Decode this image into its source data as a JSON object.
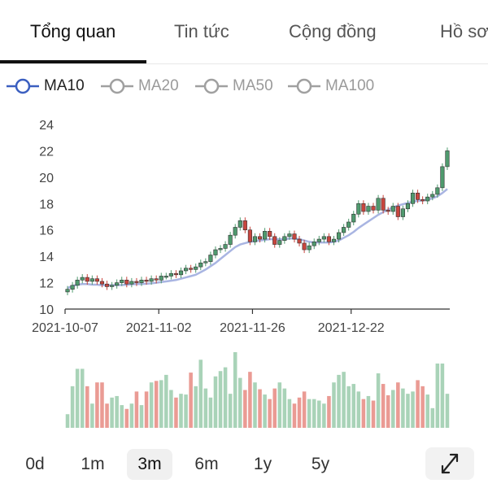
{
  "tabs": [
    {
      "label": "Tổng quan",
      "active": true
    },
    {
      "label": "Tin tức",
      "active": false
    },
    {
      "label": "Cộng đồng",
      "active": false
    },
    {
      "label": "Hồ sơ",
      "active": false
    }
  ],
  "legend": [
    {
      "label": "MA10",
      "active": true,
      "color": "#3b5fc0"
    },
    {
      "label": "MA20",
      "active": false,
      "color": "#a0a0a0"
    },
    {
      "label": "MA50",
      "active": false,
      "color": "#a0a0a0"
    },
    {
      "label": "MA100",
      "active": false,
      "color": "#a0a0a0"
    }
  ],
  "ranges": [
    {
      "label": "0d",
      "active": false
    },
    {
      "label": "1m",
      "active": false
    },
    {
      "label": "3m",
      "active": true
    },
    {
      "label": "6m",
      "active": false
    },
    {
      "label": "1y",
      "active": false
    },
    {
      "label": "5y",
      "active": false
    }
  ],
  "icons": {
    "expand": "expand-icon"
  },
  "colors": {
    "up": "#4f9a6e",
    "down": "#c8453e",
    "up_volume": "#a9d3b8",
    "down_volume": "#ea9b94",
    "ma10": "#a9b5e2"
  },
  "chart_data": {
    "type": "candlestick",
    "ylim": [
      10,
      24
    ],
    "yticks": [
      10,
      12,
      14,
      16,
      18,
      20,
      22,
      24
    ],
    "xticks": [
      "2021-10-07",
      "2021-11-02",
      "2021-11-26",
      "2021-12-22"
    ],
    "close": [
      11.5,
      11.8,
      12.2,
      12.4,
      12.1,
      12.3,
      12.1,
      11.9,
      11.7,
      11.8,
      12.0,
      12.2,
      11.9,
      12.1,
      12.0,
      12.2,
      12.1,
      12.3,
      12.2,
      12.5,
      12.5,
      12.7,
      12.6,
      12.9,
      13.1,
      13.0,
      13.2,
      13.5,
      13.6,
      14.1,
      14.5,
      14.6,
      14.9,
      15.6,
      16.2,
      16.7,
      16.0,
      15.1,
      15.5,
      15.3,
      15.9,
      15.5,
      14.9,
      15.2,
      15.5,
      15.7,
      15.3,
      15.0,
      14.5,
      14.8,
      15.1,
      15.3,
      15.5,
      15.1,
      15.3,
      15.8,
      16.2,
      16.6,
      17.2,
      18.0,
      17.4,
      17.8,
      17.5,
      18.4,
      17.5,
      17.4,
      17.8,
      17.0,
      17.6,
      18.0,
      18.8,
      18.3,
      18.2,
      18.5,
      18.7,
      19.2,
      20.8,
      22.0
    ],
    "volume": [
      18,
      55,
      78,
      78,
      55,
      32,
      60,
      60,
      32,
      40,
      42,
      30,
      25,
      32,
      48,
      30,
      48,
      60,
      62,
      63,
      70,
      50,
      40,
      45,
      44,
      73,
      55,
      90,
      52,
      40,
      68,
      75,
      80,
      45,
      100,
      66,
      50,
      74,
      60,
      51,
      44,
      38,
      52,
      60,
      52,
      38,
      32,
      40,
      48,
      38,
      38,
      36,
      32,
      42,
      60,
      70,
      74,
      55,
      58,
      48,
      38,
      42,
      36,
      72,
      58,
      43,
      50,
      60,
      52,
      45,
      48,
      63,
      55,
      44,
      26,
      85,
      85,
      45
    ],
    "ma10": [
      11.6,
      11.75,
      11.85,
      11.9,
      11.9,
      11.85,
      11.85,
      11.8,
      11.8,
      11.8,
      11.82,
      11.82,
      11.85,
      11.88,
      11.9,
      11.9,
      11.92,
      11.95,
      12.0,
      12.05,
      12.1,
      12.15,
      12.2,
      12.3,
      12.4,
      12.5,
      12.6,
      12.8,
      13.0,
      13.25,
      13.5,
      13.8,
      14.1,
      14.4,
      14.7,
      14.9,
      15.0,
      15.1,
      15.15,
      15.2,
      15.25,
      15.3,
      15.3,
      15.3,
      15.3,
      15.35,
      15.35,
      15.3,
      15.2,
      15.1,
      15.05,
      15.05,
      15.05,
      15.05,
      15.1,
      15.2,
      15.4,
      15.6,
      15.85,
      16.15,
      16.4,
      16.65,
      16.9,
      17.15,
      17.35,
      17.55,
      17.7,
      17.85,
      17.95,
      18.05,
      18.15,
      18.2,
      18.25,
      18.3,
      18.4,
      18.55,
      18.8,
      19.1
    ]
  }
}
